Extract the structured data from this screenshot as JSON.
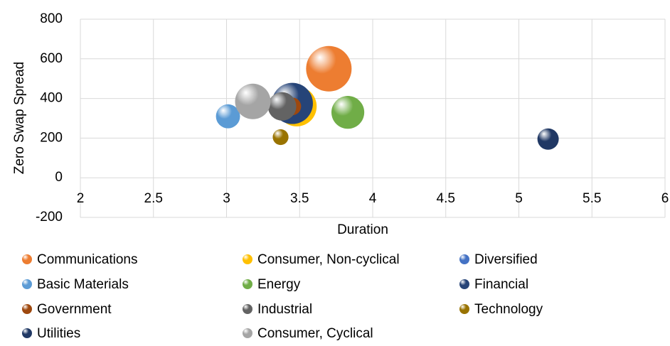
{
  "chart_data": {
    "type": "bubble",
    "xlabel": "Duration",
    "ylabel": "Zero Swap Spread",
    "xlim": [
      2,
      6
    ],
    "xticks": [
      2,
      2.5,
      3,
      3.5,
      4,
      4.5,
      5,
      5.5,
      6
    ],
    "ylim": [
      -200,
      800
    ],
    "yticks": [
      -200,
      0,
      200,
      400,
      600,
      800
    ],
    "grid": true,
    "legend": "bottom",
    "series": [
      {
        "name": "Communications",
        "color": "#ed7d31",
        "x": [
          3.7
        ],
        "values": [
          550
        ],
        "sizes": [
          1000
        ]
      },
      {
        "name": "Consumer, Non-cyclical",
        "color": "#ffc000",
        "x": [
          3.48
        ],
        "values": [
          360
        ],
        "sizes": [
          770
        ]
      },
      {
        "name": "Diversified",
        "color": "#4472c4",
        "x": [
          3.42
        ],
        "values": [
          370
        ],
        "sizes": [
          200
        ]
      },
      {
        "name": "Basic Materials",
        "color": "#5b9bd5",
        "x": [
          3.01
        ],
        "values": [
          310
        ],
        "sizes": [
          280
        ]
      },
      {
        "name": "Energy",
        "color": "#70ad47",
        "x": [
          3.83
        ],
        "values": [
          330
        ],
        "sizes": [
          520
        ]
      },
      {
        "name": "Financial",
        "color": "#264478",
        "x": [
          3.45
        ],
        "values": [
          375
        ],
        "sizes": [
          820
        ]
      },
      {
        "name": "Government",
        "color": "#9e480e",
        "x": [
          3.45
        ],
        "values": [
          360
        ],
        "sizes": [
          150
        ]
      },
      {
        "name": "Industrial",
        "color": "#636363",
        "x": [
          3.38
        ],
        "values": [
          360
        ],
        "sizes": [
          390
        ]
      },
      {
        "name": "Technology",
        "color": "#997300",
        "x": [
          3.37
        ],
        "values": [
          205
        ],
        "sizes": [
          120
        ]
      },
      {
        "name": "Utilities",
        "color": "#203864",
        "x": [
          5.2
        ],
        "values": [
          195
        ],
        "sizes": [
          220
        ]
      },
      {
        "name": "Consumer, Cyclical",
        "color": "#a5a5a5",
        "x": [
          3.18
        ],
        "values": [
          385
        ],
        "sizes": [
          610
        ]
      }
    ]
  }
}
